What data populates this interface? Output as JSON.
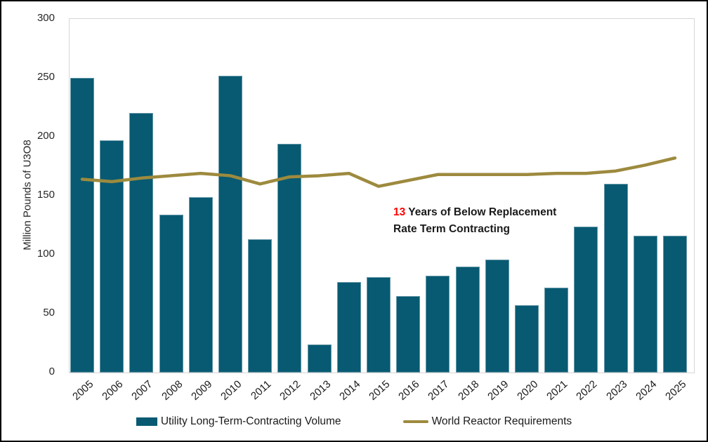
{
  "chart_data": {
    "type": "bar",
    "subtype": "bar-with-line-overlay",
    "title": "",
    "categories": [
      "2005",
      "2006",
      "2007",
      "2008",
      "2009",
      "2010",
      "2011",
      "2012",
      "2013",
      "2014",
      "2015",
      "2016",
      "2017",
      "2018",
      "2019",
      "2020",
      "2021",
      "2022",
      "2023",
      "2024",
      "2025"
    ],
    "series": [
      {
        "name": "Utility Long-Term-Contracting Volume",
        "type": "bar",
        "color": "#075a72",
        "values": [
          250,
          197,
          220,
          134,
          149,
          252,
          113,
          194,
          24,
          77,
          81,
          65,
          82,
          90,
          96,
          57,
          72,
          124,
          160,
          116,
          116
        ]
      },
      {
        "name": "World Reactor Requirements",
        "type": "line",
        "color": "#9d8a3e",
        "values": [
          164,
          162,
          165,
          167,
          169,
          167,
          160,
          166,
          167,
          169,
          158,
          163,
          168,
          168,
          168,
          168,
          169,
          169,
          171,
          176,
          182
        ]
      }
    ],
    "xlabel": "",
    "ylabel": "Million Pounds of U3O8",
    "ylim": [
      0,
      300
    ],
    "yticks": [
      0,
      50,
      100,
      150,
      200,
      250,
      300
    ],
    "grid": false,
    "legend_position": "bottom"
  },
  "annotation": {
    "highlight": "13",
    "highlight_color": "#ff0000",
    "line1_rest": " Years of Below Replacement",
    "line2": "Rate Term Contracting"
  }
}
